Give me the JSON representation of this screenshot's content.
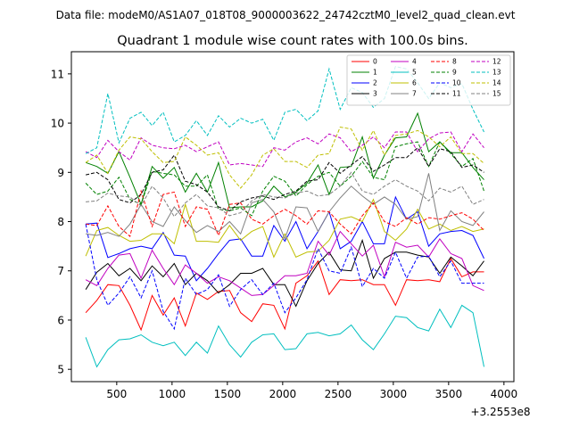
{
  "header": {
    "suptitle": "Data file: modeM0/AS1A07_018T08_9000003622_24742cztM0_level2_quad_clean.evt"
  },
  "chart_data": {
    "type": "line",
    "title": "Quadrant 1 module wise count rates with 100.0s bins.",
    "xlabel": "",
    "ylabel": "",
    "x_offset_label": "+3.2553e8",
    "xlim": [
      90,
      4090
    ],
    "ylim": [
      4.75,
      11.45
    ],
    "xticks": [
      500,
      1000,
      1500,
      2000,
      2500,
      3000,
      3500,
      4000
    ],
    "yticks": [
      5,
      6,
      7,
      8,
      9,
      10,
      11
    ],
    "legend_position": "top-right",
    "x": [
      220,
      320,
      420,
      520,
      620,
      720,
      820,
      920,
      1020,
      1120,
      1220,
      1320,
      1420,
      1520,
      1620,
      1720,
      1820,
      1920,
      2020,
      2120,
      2220,
      2320,
      2420,
      2520,
      2620,
      2720,
      2820,
      2920,
      3020,
      3120,
      3220,
      3320,
      3420,
      3520,
      3620,
      3720,
      3820
    ],
    "series": [
      {
        "name": "0",
        "color": "#ff0000",
        "dash": false,
        "values": [
          6.15,
          6.4,
          6.72,
          6.7,
          6.3,
          5.8,
          6.5,
          6.1,
          6.45,
          5.88,
          6.55,
          6.42,
          6.58,
          6.6,
          6.15,
          5.97,
          6.33,
          6.3,
          5.82,
          6.75,
          6.9,
          7.2,
          6.52,
          6.82,
          6.8,
          6.82,
          6.72,
          6.72,
          6.3,
          6.82,
          6.8,
          6.82,
          6.78,
          7.25,
          6.88,
          6.98,
          6.98
        ]
      },
      {
        "name": "1",
        "color": "#008000",
        "dash": false,
        "values": [
          9.2,
          9.12,
          8.98,
          9.42,
          8.9,
          8.35,
          9.12,
          8.88,
          9.1,
          8.6,
          8.98,
          8.6,
          9.2,
          8.28,
          8.3,
          8.3,
          8.42,
          8.72,
          8.5,
          8.6,
          8.78,
          9.15,
          8.55,
          9.1,
          9.12,
          9.72,
          8.88,
          9.35,
          9.7,
          9.72,
          10.2,
          9.42,
          9.62,
          9.4,
          9.4,
          9.1,
          8.85
        ]
      },
      {
        "name": "2",
        "color": "#0000ff",
        "dash": false,
        "values": [
          7.95,
          7.97,
          7.27,
          7.35,
          7.45,
          7.5,
          7.45,
          7.78,
          7.32,
          7.3,
          6.8,
          7.05,
          7.35,
          7.62,
          7.65,
          7.3,
          7.3,
          7.92,
          7.6,
          8.0,
          7.45,
          7.8,
          8.2,
          7.45,
          7.6,
          8.0,
          7.55,
          7.55,
          8.5,
          8.05,
          8.2,
          7.5,
          7.75,
          7.8,
          7.82,
          7.72,
          7.25
        ]
      },
      {
        "name": "3",
        "color": "#000000",
        "dash": false,
        "values": [
          6.62,
          6.97,
          7.15,
          6.9,
          7.05,
          6.8,
          7.1,
          6.88,
          7.15,
          6.72,
          6.95,
          6.8,
          6.55,
          6.72,
          6.95,
          6.95,
          7.05,
          6.72,
          6.72,
          6.28,
          6.8,
          7.15,
          7.38,
          7.02,
          7.0,
          7.62,
          6.85,
          7.25,
          7.38,
          7.38,
          7.32,
          7.28,
          6.95,
          7.28,
          7.1,
          6.9,
          7.2
        ]
      },
      {
        "name": "4",
        "color": "#c000c0",
        "dash": false,
        "values": [
          6.82,
          6.7,
          7.05,
          7.32,
          7.35,
          6.85,
          7.42,
          7.05,
          6.72,
          7.12,
          6.95,
          6.75,
          6.88,
          6.8,
          6.65,
          6.5,
          6.52,
          6.7,
          6.9,
          6.9,
          6.95,
          7.6,
          7.32,
          7.8,
          7.55,
          7.3,
          7.52,
          6.88,
          7.58,
          7.48,
          7.52,
          7.28,
          7.65,
          7.35,
          7.25,
          6.7,
          6.6
        ]
      },
      {
        "name": "5",
        "color": "#00bfbf",
        "dash": false,
        "values": [
          5.65,
          5.05,
          5.4,
          5.6,
          5.62,
          5.7,
          5.55,
          5.48,
          5.55,
          5.28,
          5.55,
          5.33,
          5.88,
          5.5,
          5.25,
          5.55,
          5.7,
          5.72,
          5.4,
          5.42,
          5.72,
          5.75,
          5.68,
          5.72,
          5.9,
          5.6,
          5.4,
          5.72,
          6.08,
          6.05,
          5.85,
          5.78,
          6.22,
          5.85,
          6.3,
          6.15,
          5.05
        ]
      },
      {
        "name": "6",
        "color": "#bfbf00",
        "dash": false,
        "values": [
          7.3,
          7.82,
          7.88,
          7.72,
          7.6,
          7.62,
          7.75,
          7.75,
          7.55,
          8.35,
          7.6,
          7.6,
          7.58,
          7.92,
          7.62,
          7.8,
          7.9,
          7.28,
          7.75,
          7.28,
          7.38,
          7.4,
          7.62,
          8.05,
          8.1,
          8.0,
          8.45,
          7.8,
          7.62,
          7.85,
          8.25,
          7.85,
          7.95,
          7.82,
          7.9,
          7.8,
          7.85
        ]
      },
      {
        "name": "7",
        "color": "#808080",
        "dash": false,
        "values": [
          7.75,
          7.72,
          7.78,
          7.7,
          7.95,
          8.35,
          8.0,
          7.9,
          8.3,
          8.02,
          7.78,
          7.92,
          7.8,
          8.0,
          7.75,
          8.38,
          8.45,
          8.2,
          7.65,
          8.3,
          8.28,
          7.8,
          8.2,
          8.48,
          8.72,
          8.52,
          8.35,
          8.5,
          8.35,
          8.05,
          8.1,
          8.98,
          7.82,
          8.22,
          8.0,
          7.92,
          8.2
        ]
      },
      {
        "name": "8",
        "color": "#ff0000",
        "dash": true,
        "values": [
          7.95,
          7.92,
          8.32,
          7.9,
          7.7,
          8.62,
          7.9,
          8.55,
          8.6,
          7.9,
          8.3,
          8.25,
          7.72,
          8.35,
          8.38,
          8.05,
          7.95,
          8.12,
          8.25,
          8.12,
          7.95,
          8.22,
          8.2,
          7.95,
          7.75,
          8.12,
          8.38,
          8.0,
          7.9,
          8.08,
          7.95,
          8.08,
          8.05,
          8.12,
          8.18,
          8.05,
          7.82
        ]
      },
      {
        "name": "9",
        "color": "#008000",
        "dash": true,
        "values": [
          8.78,
          8.55,
          8.62,
          8.9,
          8.45,
          8.35,
          9.02,
          8.98,
          8.95,
          8.72,
          8.72,
          8.95,
          8.25,
          8.22,
          8.28,
          8.12,
          8.62,
          8.92,
          8.82,
          8.52,
          8.75,
          8.92,
          9.0,
          8.72,
          8.92,
          9.22,
          8.9,
          8.85,
          9.52,
          9.58,
          9.62,
          9.12,
          9.62,
          9.38,
          9.12,
          9.28,
          8.62
        ]
      },
      {
        "name": "10",
        "color": "#0000ff",
        "dash": true,
        "values": [
          7.95,
          6.82,
          6.3,
          6.55,
          6.88,
          6.45,
          7.0,
          6.18,
          5.82,
          6.85,
          6.52,
          6.62,
          6.92,
          6.28,
          6.62,
          6.82,
          6.52,
          6.75,
          6.15,
          6.45,
          6.82,
          7.45,
          7.0,
          6.95,
          7.48,
          6.68,
          7.05,
          6.85,
          7.38,
          6.85,
          7.28,
          7.3,
          6.88,
          7.2,
          6.75,
          6.75,
          6.75
        ]
      },
      {
        "name": "11",
        "color": "#000000",
        "dash": true,
        "values": [
          8.95,
          9.0,
          8.85,
          8.45,
          8.38,
          8.55,
          9.0,
          9.05,
          9.35,
          8.82,
          8.75,
          8.6,
          8.3,
          8.22,
          8.4,
          8.48,
          8.52,
          8.45,
          8.55,
          8.62,
          8.82,
          8.85,
          9.2,
          8.98,
          9.15,
          9.32,
          9.02,
          9.15,
          9.3,
          9.3,
          9.5,
          9.12,
          9.48,
          9.42,
          9.1,
          9.15,
          9.0
        ]
      },
      {
        "name": "12",
        "color": "#c000c0",
        "dash": true,
        "values": [
          9.42,
          9.3,
          9.65,
          9.42,
          9.25,
          9.7,
          9.55,
          9.5,
          9.48,
          9.55,
          9.42,
          9.52,
          9.62,
          9.15,
          9.18,
          9.15,
          9.12,
          9.5,
          9.45,
          9.62,
          9.7,
          9.58,
          9.78,
          9.7,
          9.42,
          9.55,
          9.72,
          9.5,
          9.82,
          9.82,
          9.42,
          9.68,
          9.8,
          9.82,
          9.42,
          9.78,
          9.5
        ]
      },
      {
        "name": "13",
        "color": "#00bfbf",
        "dash": true,
        "values": [
          9.38,
          9.5,
          10.6,
          9.6,
          10.1,
          10.22,
          9.95,
          10.22,
          9.62,
          9.75,
          10.05,
          9.75,
          10.15,
          9.92,
          10.1,
          10.0,
          10.08,
          9.65,
          10.22,
          10.28,
          10.05,
          10.25,
          11.1,
          10.28,
          10.72,
          10.62,
          10.32,
          10.5,
          11.15,
          11.1,
          10.82,
          10.5,
          10.82,
          10.72,
          10.8,
          10.28,
          9.82
        ]
      },
      {
        "name": "14",
        "color": "#bfbf00",
        "dash": true,
        "values": [
          9.2,
          9.35,
          8.98,
          9.45,
          9.72,
          9.68,
          9.42,
          9.2,
          9.22,
          9.72,
          9.55,
          9.35,
          9.4,
          8.95,
          8.68,
          8.95,
          9.35,
          9.48,
          9.22,
          9.22,
          9.1,
          9.35,
          9.38,
          9.92,
          9.88,
          9.45,
          9.85,
          9.35,
          9.75,
          9.78,
          9.85,
          9.72,
          9.52,
          9.72,
          9.38,
          9.38,
          9.18
        ]
      },
      {
        "name": "15",
        "color": "#808080",
        "dash": true,
        "values": [
          8.4,
          8.42,
          8.58,
          8.52,
          8.5,
          8.32,
          8.72,
          8.48,
          8.1,
          8.38,
          8.55,
          8.32,
          8.28,
          8.12,
          8.18,
          8.42,
          8.55,
          8.5,
          8.48,
          8.58,
          8.62,
          8.52,
          8.55,
          8.72,
          9.0,
          8.62,
          8.55,
          8.72,
          8.85,
          8.72,
          8.62,
          8.42,
          8.68,
          8.6,
          8.72,
          8.35,
          8.45
        ]
      }
    ]
  }
}
